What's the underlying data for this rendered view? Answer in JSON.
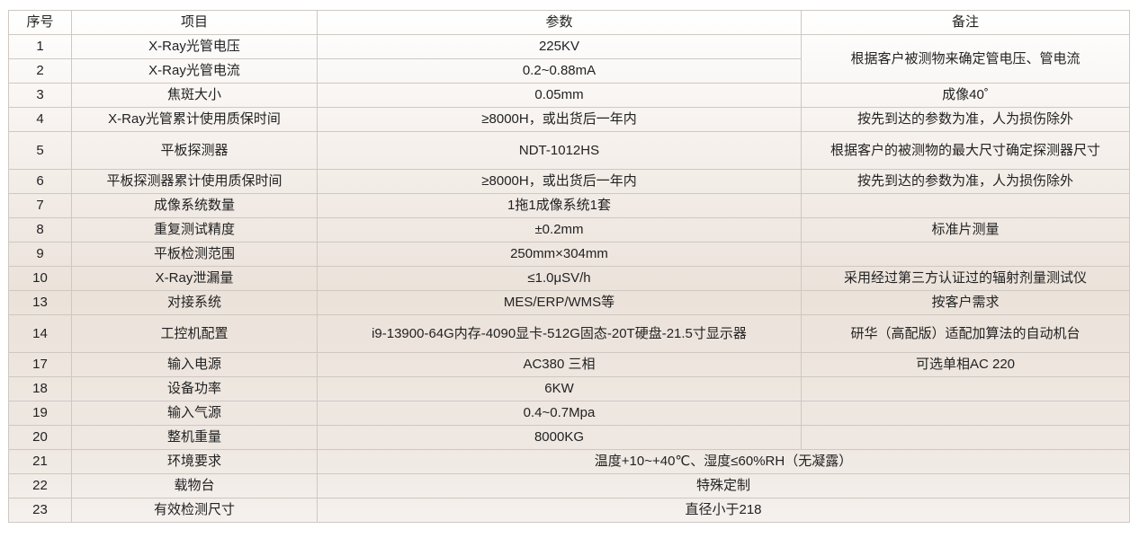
{
  "headers": [
    "序号",
    "项目",
    "参数",
    "备注"
  ],
  "rows": [
    {
      "no": "1",
      "item": "X-Ray光管电压",
      "param": "225KV",
      "note": "根据客户被测物来确定管电压、管电流",
      "note_rowspan": 2
    },
    {
      "no": "2",
      "item": "X-Ray光管电流",
      "param": "0.2~0.88mA",
      "note_merged": true
    },
    {
      "no": "3",
      "item": "焦斑大小",
      "param": "0.05mm",
      "note": "成像40˚"
    },
    {
      "no": "4",
      "item": "X-Ray光管累计使用质保时间",
      "param": "≥8000H，或出货后一年内",
      "note": "按先到达的参数为准，人为损伤除外"
    },
    {
      "no": "5",
      "item": "平板探测器",
      "param": "NDT-1012HS",
      "note": "根据客户的被测物的最大尺寸确定探测器尺寸",
      "tall": true
    },
    {
      "no": "6",
      "item": "平板探测器累计使用质保时间",
      "param": "≥8000H，或出货后一年内",
      "note": "按先到达的参数为准，人为损伤除外"
    },
    {
      "no": "7",
      "item": "成像系统数量",
      "param": "1拖1成像系统1套",
      "note": ""
    },
    {
      "no": "8",
      "item": "重复测试精度",
      "param": "±0.2mm",
      "note": "标准片测量"
    },
    {
      "no": "9",
      "item": "平板检测范围",
      "param": "250mm×304mm",
      "note": ""
    },
    {
      "no": "10",
      "item": "X-Ray泄漏量",
      "param": "≤1.0μSV/h",
      "note": "采用经过第三方认证过的辐射剂量测试仪"
    },
    {
      "no": "13",
      "item": "对接系统",
      "param": "MES/ERP/WMS等",
      "note": "按客户需求"
    },
    {
      "no": "14",
      "item": "工控机配置",
      "param": "i9-13900-64G内存-4090显卡-512G固态-20T硬盘-21.5寸显示器",
      "note": "研华（高配版）适配加算法的自动机台",
      "tall": true
    },
    {
      "no": "17",
      "item": "输入电源",
      "param": "AC380 三相",
      "note": "可选单相AC 220"
    },
    {
      "no": "18",
      "item": "设备功率",
      "param": "6KW",
      "note": ""
    },
    {
      "no": "19",
      "item": "输入气源",
      "param": "0.4~0.7Mpa",
      "note": ""
    },
    {
      "no": "20",
      "item": "整机重量",
      "param": "8000KG",
      "note": ""
    },
    {
      "no": "21",
      "item": "环境要求",
      "param": "温度+10~+40℃、湿度≤60%RH（无凝露）",
      "span": true
    },
    {
      "no": "22",
      "item": "载物台",
      "param": "特殊定制",
      "span": true
    },
    {
      "no": "23",
      "item": "有效检测尺寸",
      "param": "直径小于218",
      "span": true
    }
  ]
}
